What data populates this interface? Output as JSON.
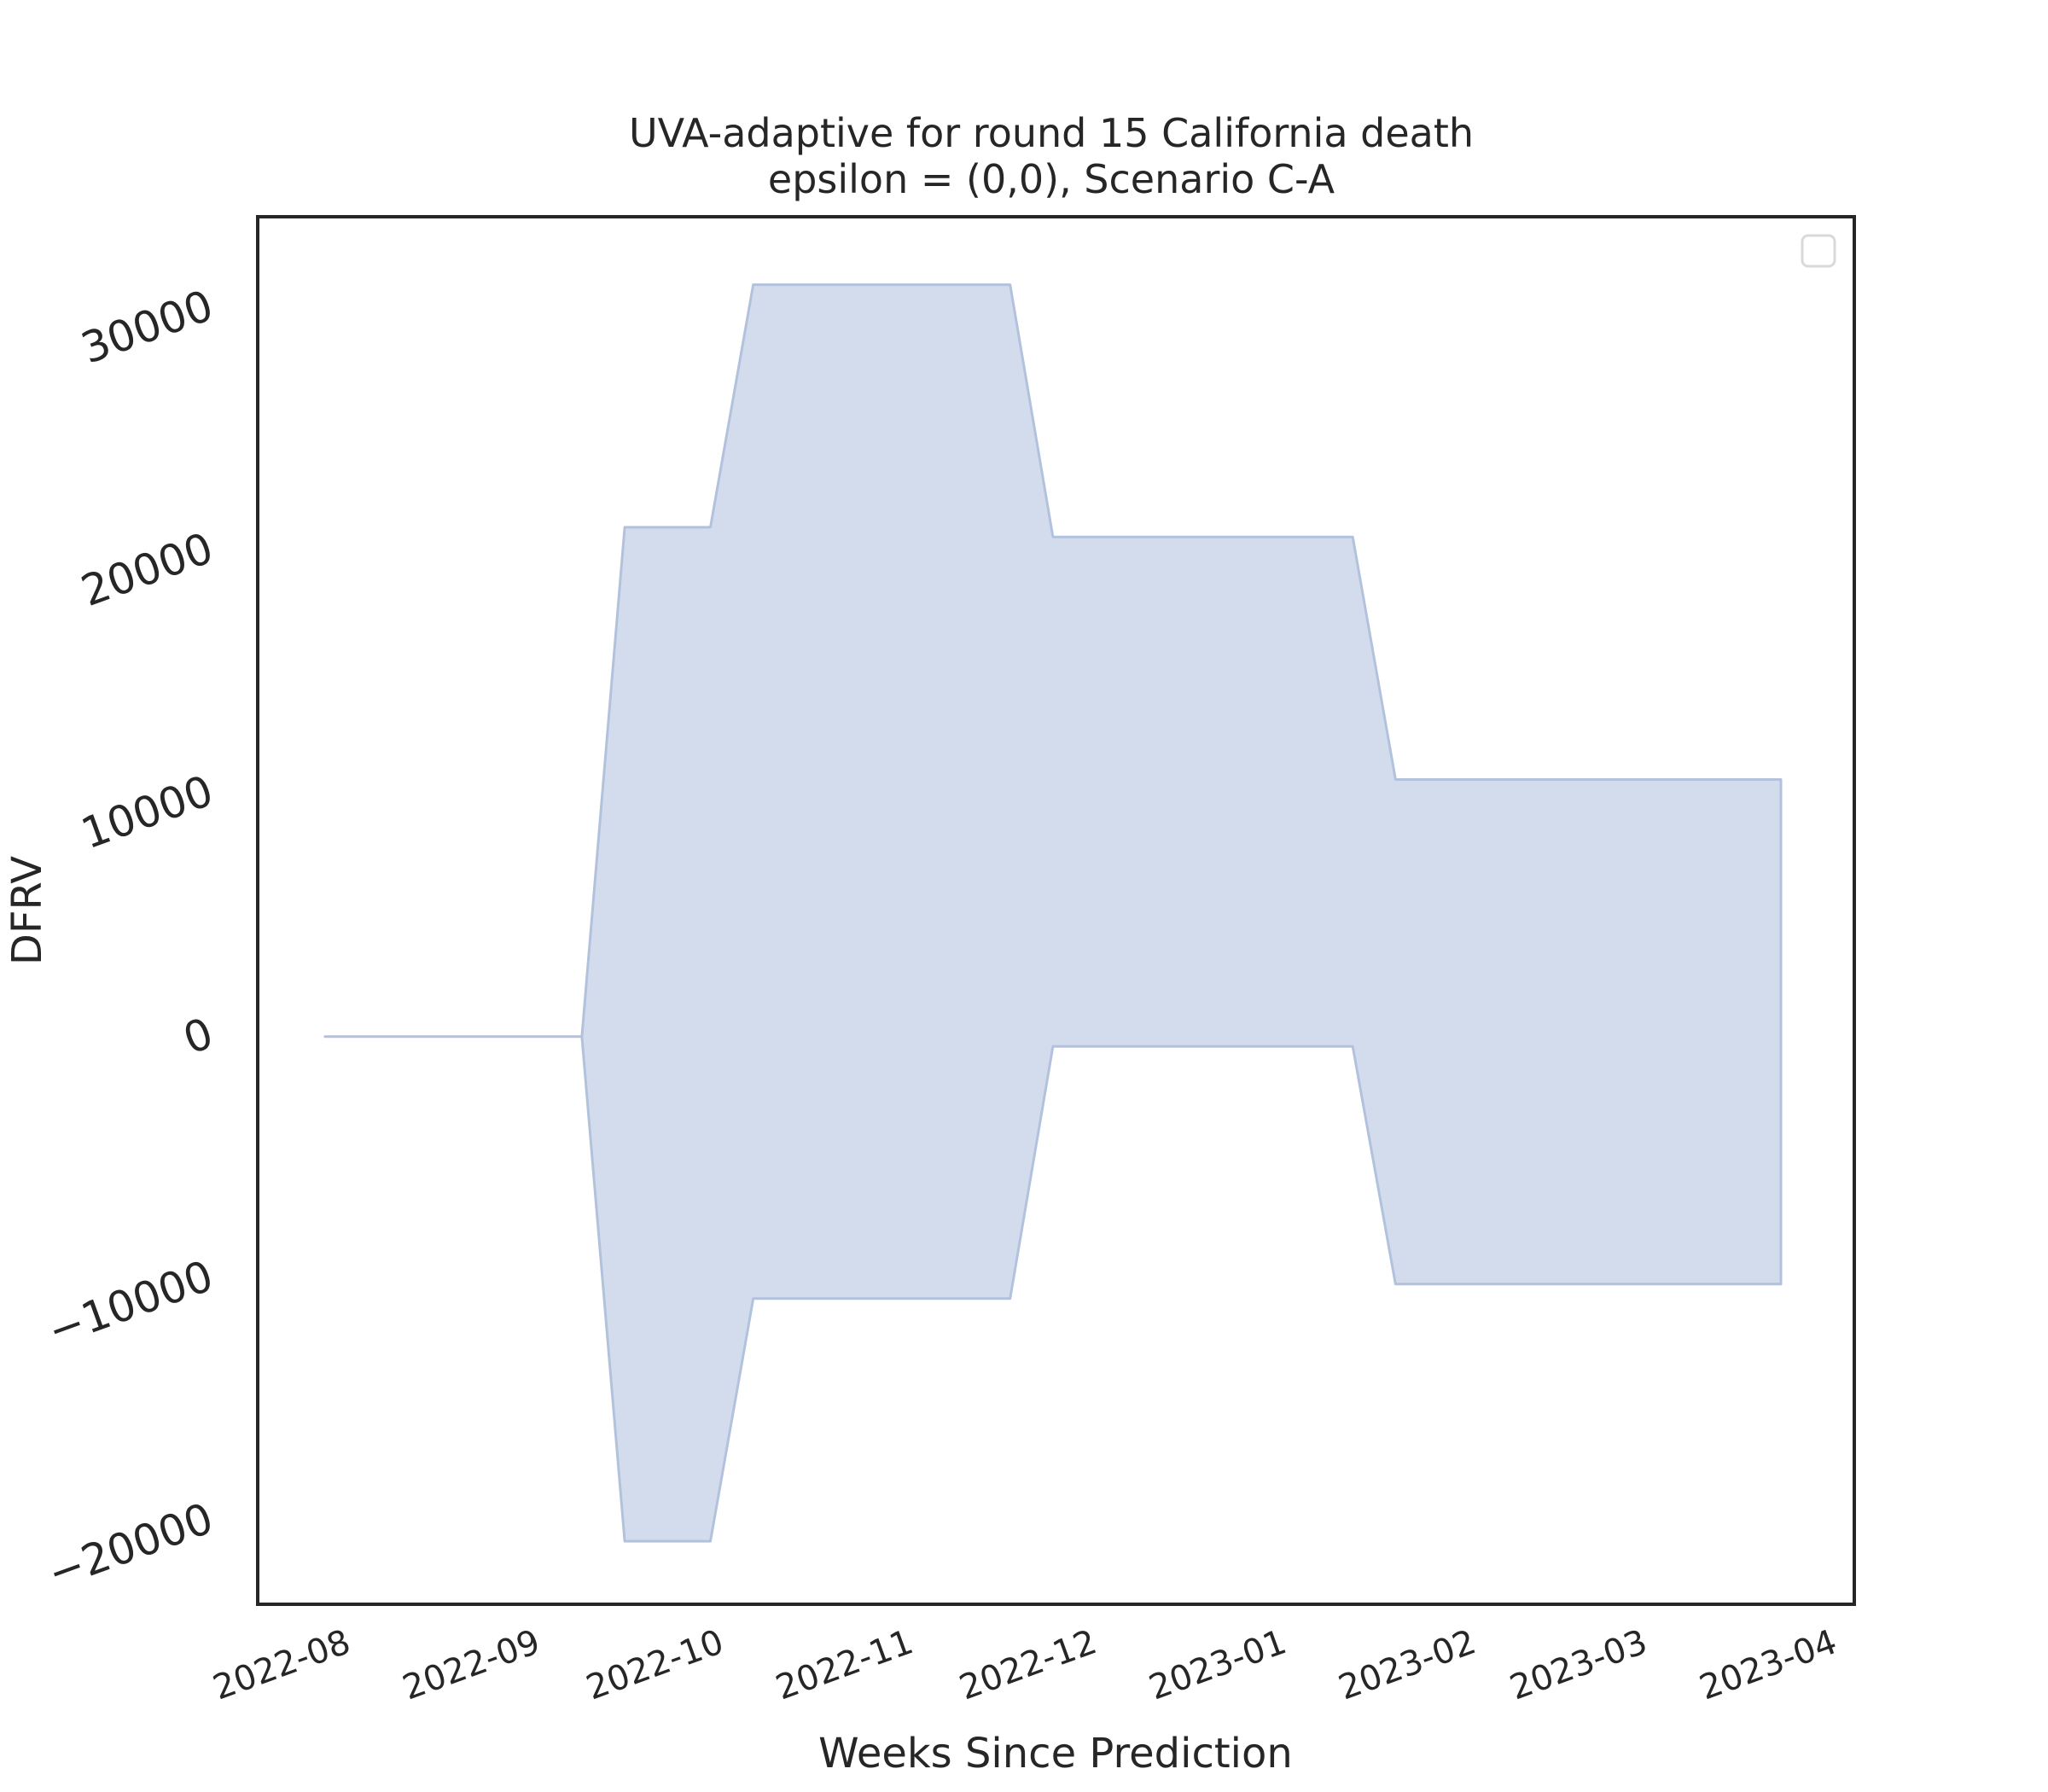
{
  "chart_data": {
    "type": "area",
    "title": "UVA-adaptive for round 15 California death",
    "subtitle": "epsilon = (0,0), Scenario C-A",
    "xlabel": "Weeks Since Prediction",
    "ylabel": "DFRV",
    "x_tick_labels": [
      "2022-08",
      "2022-09",
      "2022-10",
      "2022-11",
      "2022-12",
      "2023-01",
      "2023-02",
      "2023-03",
      "2023-04"
    ],
    "y_tick_labels": [
      "−20000",
      "−10000",
      "0",
      "10000",
      "20000",
      "30000"
    ],
    "y_ticks": [
      -20000,
      -10000,
      0,
      10000,
      20000,
      30000
    ],
    "xlim": [
      "2022-07-19",
      "2023-04-06"
    ],
    "ylim": [
      -23400,
      33800
    ],
    "grid": false,
    "legend": "top-right",
    "fill_color": "#c8d4e9",
    "edge_color": "#b3c2dc",
    "series": [
      {
        "x": [
          "2022-07-30",
          "2022-08-06",
          "2022-08-13",
          "2022-08-20",
          "2022-08-27",
          "2022-09-03",
          "2022-09-10",
          "2022-09-17",
          "2022-09-24",
          "2022-10-01",
          "2022-10-08",
          "2022-10-15",
          "2022-10-22",
          "2022-10-29",
          "2022-11-05",
          "2022-11-12",
          "2022-11-19",
          "2022-11-26",
          "2022-12-03",
          "2022-12-10",
          "2022-12-17",
          "2022-12-24",
          "2022-12-31",
          "2023-01-07",
          "2023-01-14",
          "2023-01-21",
          "2023-01-28",
          "2023-02-04",
          "2023-02-11",
          "2023-02-18",
          "2023-02-25",
          "2023-03-04",
          "2023-03-11",
          "2023-03-18",
          "2023-03-25"
        ],
        "lower": [
          0,
          0,
          0,
          0,
          0,
          0,
          0,
          -20800,
          -20800,
          -20800,
          -10800,
          -10800,
          -10800,
          -10800,
          -10800,
          -10800,
          -10800,
          -400,
          -400,
          -400,
          -400,
          -400,
          -400,
          -400,
          -400,
          -10200,
          -10200,
          -10200,
          -10200,
          -10200,
          -10200,
          -10200,
          -10200,
          -10200,
          -10200
        ],
        "upper": [
          0,
          0,
          0,
          0,
          0,
          0,
          0,
          21000,
          21000,
          21000,
          31000,
          31000,
          31000,
          31000,
          31000,
          31000,
          31000,
          20600,
          20600,
          20600,
          20600,
          20600,
          20600,
          20600,
          20600,
          10600,
          10600,
          10600,
          10600,
          10600,
          10600,
          10600,
          10600,
          10600,
          10600
        ]
      }
    ]
  }
}
